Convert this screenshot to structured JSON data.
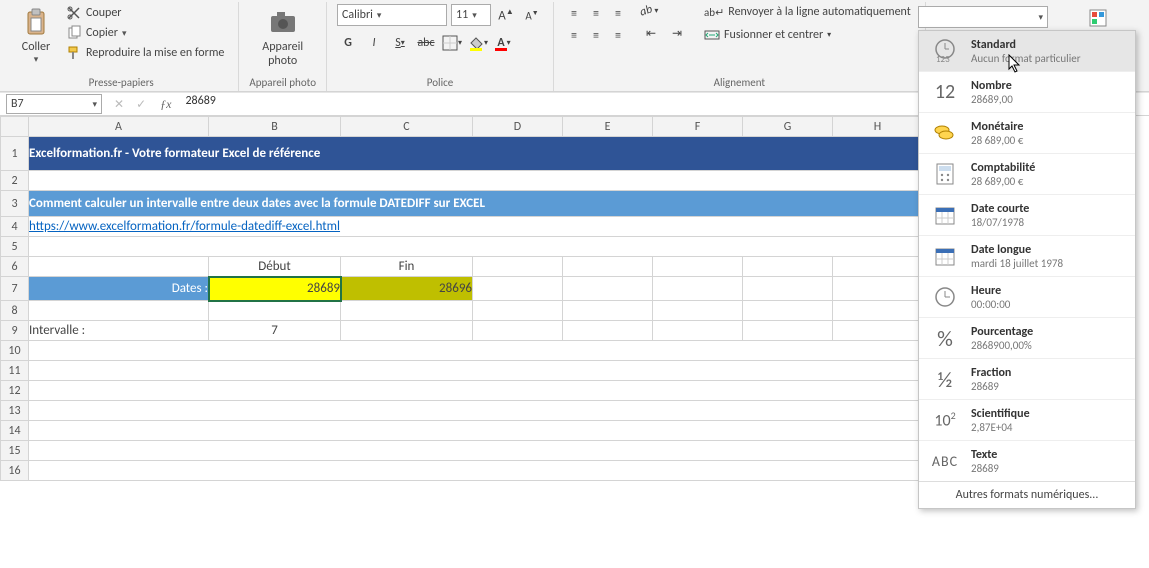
{
  "ribbon": {
    "clipboard": {
      "paste": "Coller",
      "cut": "Couper",
      "copy": "Copier",
      "painter": "Reproduire la mise en forme",
      "group": "Presse-papiers"
    },
    "camera": {
      "label": "Appareil\nphoto",
      "group": "Appareil photo"
    },
    "font": {
      "name": "Calibri",
      "size": "11",
      "group": "Police"
    },
    "alignment": {
      "wrap": "Renvoyer à la ligne automatiquement",
      "merge": "Fusionner et centrer",
      "group": "Alignement"
    }
  },
  "formula_bar": {
    "name_box": "B7",
    "formula": "28689"
  },
  "columns": [
    "A",
    "B",
    "C",
    "D",
    "E",
    "F",
    "G",
    "H"
  ],
  "rows_visible": 16,
  "sheet": {
    "banner1": "Excelformation.fr - Votre formateur Excel de référence",
    "banner2": "Comment calculer un intervalle entre deux dates avec la formule DATEDIFF sur EXCEL",
    "link": "https://www.excelformation.fr/formule-datediff-excel.html",
    "hdr_debut": "Début",
    "hdr_fin": "Fin",
    "dates_label": "Dates :",
    "val_b7": "28689",
    "val_c7": "28696",
    "intervalle_label": "Intervalle :",
    "intervalle_val": "7"
  },
  "format_menu": {
    "items": [
      {
        "icon": "123",
        "title": "Standard",
        "sub": "Aucun format particulier"
      },
      {
        "icon": "12",
        "title": "Nombre",
        "sub": "28689,00"
      },
      {
        "icon": "coin",
        "title": "Monétaire",
        "sub": "28 689,00 €"
      },
      {
        "icon": "calc",
        "title": "Comptabilité",
        "sub": " 28 689,00 €"
      },
      {
        "icon": "cal",
        "title": "Date courte",
        "sub": "18/07/1978"
      },
      {
        "icon": "cal",
        "title": "Date longue",
        "sub": "mardi 18 juillet 1978"
      },
      {
        "icon": "clk",
        "title": "Heure",
        "sub": "00:00:00"
      },
      {
        "icon": "%",
        "title": "Pourcentage",
        "sub": "2868900,00%"
      },
      {
        "icon": "½",
        "title": "Fraction",
        "sub": "28689"
      },
      {
        "icon": "10²",
        "title": "Scientifique",
        "sub": "2,87E+04"
      },
      {
        "icon": "ABC",
        "title": "Texte",
        "sub": "28689"
      }
    ],
    "footer": "Autres formats numériques..."
  },
  "colors": {
    "banner1_bg": "#2f5496",
    "banner2_bg": "#5b9bd5",
    "link": "#0563c1",
    "yellow": "#ffff00",
    "olive": "#bfbf00",
    "selection": "#217346"
  }
}
